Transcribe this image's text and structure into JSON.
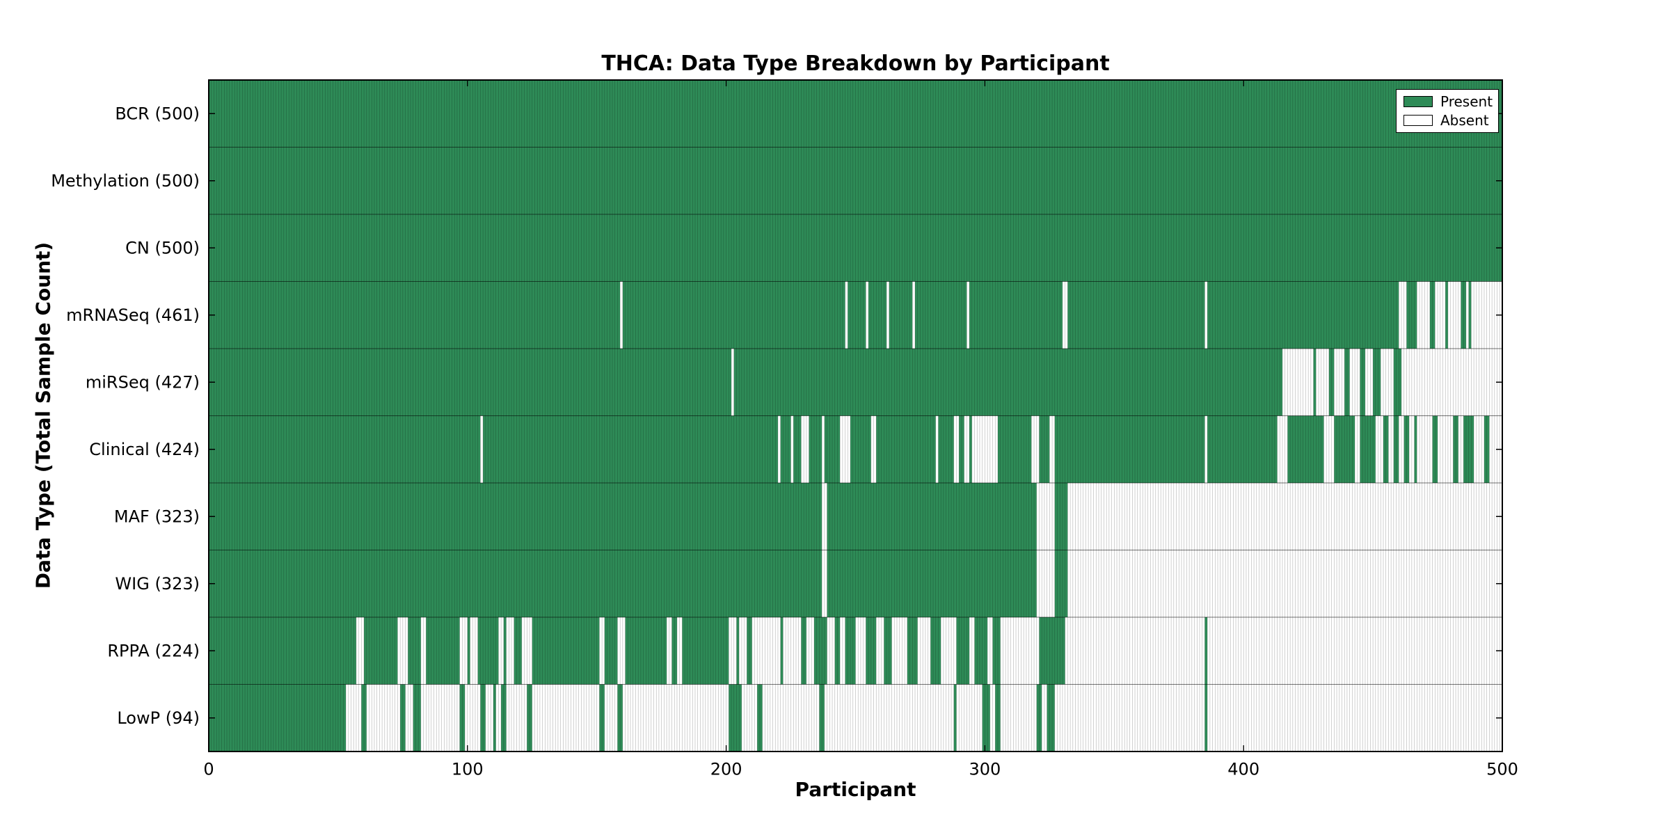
{
  "chart_data": {
    "type": "heatmap",
    "title": "THCA: Data Type Breakdown by Participant",
    "xlabel": "Participant",
    "ylabel": "Data Type (Total Sample Count)",
    "x_range": [
      0,
      500
    ],
    "x_ticks": [
      0,
      100,
      200,
      300,
      400,
      500
    ],
    "n_participants": 500,
    "grid": false,
    "legend_position": "upper-right",
    "legend_labels": [
      "Present",
      "Absent"
    ],
    "colors": {
      "present": "#2e8b57",
      "absent": "#ffffff",
      "bar_edge": "rgba(0,0,0,0.30)",
      "row_divider": "rgba(0,0,0,0.55)",
      "axis": "#000000"
    },
    "rows": [
      {
        "name": "BCR",
        "label": "BCR (500)",
        "count": 500,
        "absent_ranges": []
      },
      {
        "name": "Methylation",
        "label": "Methylation (500)",
        "count": 500,
        "absent_ranges": []
      },
      {
        "name": "CN",
        "label": "CN (500)",
        "count": 500,
        "absent_ranges": []
      },
      {
        "name": "mRNASeq",
        "label": "mRNASeq (461)",
        "count": 461,
        "absent_ranges": [
          [
            159,
            159
          ],
          [
            246,
            246
          ],
          [
            254,
            254
          ],
          [
            262,
            262
          ],
          [
            272,
            272
          ],
          [
            293,
            293
          ],
          [
            330,
            331
          ],
          [
            385,
            385
          ],
          [
            460,
            462
          ],
          [
            467,
            471
          ],
          [
            474,
            477
          ],
          [
            479,
            483
          ],
          [
            486,
            486
          ],
          [
            488,
            499
          ]
        ]
      },
      {
        "name": "miRSeq",
        "label": "miRSeq (427)",
        "count": 427,
        "absent_ranges": [
          [
            202,
            202
          ],
          [
            415,
            426
          ],
          [
            428,
            432
          ],
          [
            435,
            438
          ],
          [
            441,
            444
          ],
          [
            447,
            449
          ],
          [
            453,
            457
          ],
          [
            461,
            499
          ]
        ]
      },
      {
        "name": "Clinical",
        "label": "Clinical (424)",
        "count": 424,
        "absent_ranges": [
          [
            105,
            105
          ],
          [
            220,
            220
          ],
          [
            225,
            225
          ],
          [
            229,
            231
          ],
          [
            237,
            237
          ],
          [
            244,
            247
          ],
          [
            256,
            257
          ],
          [
            281,
            281
          ],
          [
            288,
            289
          ],
          [
            292,
            293
          ],
          [
            295,
            304
          ],
          [
            318,
            320
          ],
          [
            325,
            326
          ],
          [
            385,
            385
          ],
          [
            413,
            416
          ],
          [
            431,
            434
          ],
          [
            443,
            444
          ],
          [
            451,
            453
          ],
          [
            456,
            457
          ],
          [
            460,
            461
          ],
          [
            464,
            465
          ],
          [
            467,
            472
          ],
          [
            475,
            480
          ],
          [
            483,
            484
          ],
          [
            489,
            492
          ],
          [
            495,
            499
          ]
        ]
      },
      {
        "name": "MAF",
        "label": "MAF (323)",
        "count": 323,
        "absent_ranges": [
          [
            237,
            238
          ],
          [
            320,
            326
          ],
          [
            332,
            499
          ]
        ]
      },
      {
        "name": "WIG",
        "label": "WIG (323)",
        "count": 323,
        "absent_ranges": [
          [
            237,
            238
          ],
          [
            320,
            326
          ],
          [
            332,
            499
          ]
        ]
      },
      {
        "name": "RPPA",
        "label": "RPPA (224)",
        "count": 224,
        "absent_ranges": [
          [
            57,
            59
          ],
          [
            73,
            76
          ],
          [
            82,
            83
          ],
          [
            97,
            99
          ],
          [
            101,
            103
          ],
          [
            112,
            113
          ],
          [
            115,
            117
          ],
          [
            121,
            124
          ],
          [
            151,
            152
          ],
          [
            158,
            160
          ],
          [
            177,
            178
          ],
          [
            181,
            182
          ],
          [
            201,
            203
          ],
          [
            205,
            207
          ],
          [
            210,
            220
          ],
          [
            222,
            228
          ],
          [
            231,
            233
          ],
          [
            239,
            241
          ],
          [
            244,
            245
          ],
          [
            250,
            253
          ],
          [
            258,
            260
          ],
          [
            264,
            269
          ],
          [
            274,
            278
          ],
          [
            283,
            288
          ],
          [
            294,
            295
          ],
          [
            301,
            302
          ],
          [
            306,
            320
          ],
          [
            331,
            384
          ],
          [
            386,
            499
          ]
        ]
      },
      {
        "name": "LowP",
        "label": "LowP (94)",
        "count": 94,
        "absent_ranges": [
          [
            53,
            58
          ],
          [
            61,
            73
          ],
          [
            76,
            78
          ],
          [
            82,
            96
          ],
          [
            99,
            104
          ],
          [
            107,
            109
          ],
          [
            111,
            112
          ],
          [
            115,
            122
          ],
          [
            125,
            150
          ],
          [
            153,
            157
          ],
          [
            160,
            200
          ],
          [
            206,
            211
          ],
          [
            214,
            235
          ],
          [
            238,
            287
          ],
          [
            289,
            298
          ],
          [
            302,
            303
          ],
          [
            306,
            319
          ],
          [
            322,
            323
          ],
          [
            327,
            384
          ],
          [
            386,
            499
          ]
        ]
      }
    ]
  }
}
